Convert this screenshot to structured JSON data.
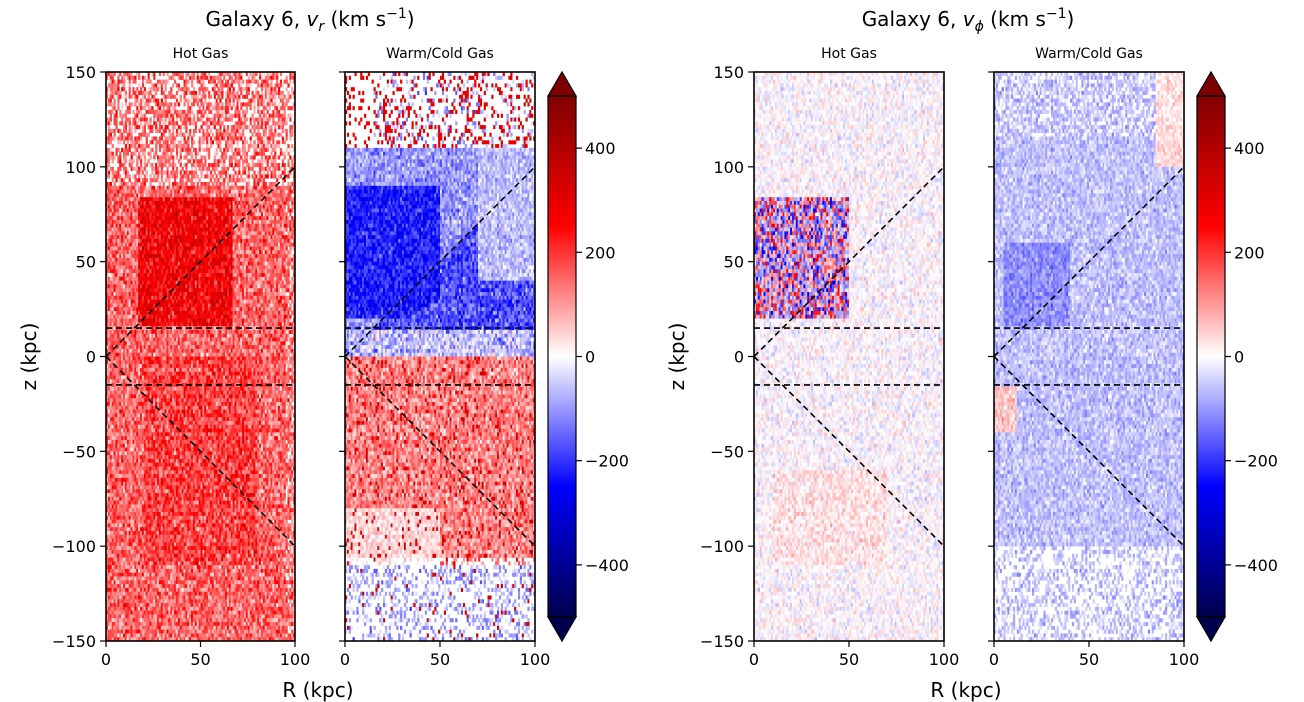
{
  "figure": {
    "left_title": {
      "prefix": "Galaxy 6, ",
      "var": "v",
      "sub": "r",
      "units": " (km s",
      "exp": "−1",
      "close": ")"
    },
    "right_title": {
      "prefix": "Galaxy 6, ",
      "var": "v",
      "sub": "ϕ",
      "units": " (km s",
      "exp": "−1",
      "close": ")"
    }
  },
  "colors": {
    "cmap_low": "#00004c",
    "cmap_mid": "#ffffff",
    "cmap_high": "#7f0000",
    "blue": "#0000ff",
    "red": "#ff0000",
    "guide": "#000000"
  },
  "chart_data": [
    {
      "type": "heatmap",
      "title": "Hot Gas",
      "group": "v_r",
      "xlabel": "R (kpc)",
      "ylabel": "z (kpc)",
      "xlim": [
        0,
        100
      ],
      "ylim": [
        -150,
        150
      ],
      "xticks": [
        "0",
        "50",
        "100"
      ],
      "yticks": [
        "150",
        "100",
        "50",
        "0",
        "−50",
        "−100",
        "−150"
      ],
      "guides": {
        "horizontal_z": [
          15,
          -15
        ],
        "diagonal_slope_z_per_R": 1
      },
      "description_of_values": "predominantly positive v_r ~100–300 km/s throughout; strongest (~400) near R 30–60, z 20–80"
    },
    {
      "type": "heatmap",
      "title": "Warm/Cold Gas",
      "group": "v_r",
      "xlim": [
        0,
        100
      ],
      "ylim": [
        -150,
        150
      ],
      "xticks": [
        "0",
        "50",
        "100"
      ],
      "guides": {
        "horizontal_z": [
          15,
          -15
        ],
        "diagonal_slope_z_per_R": 1
      },
      "description_of_values": "negative v_r (~−150 to −300) above the plane within the cone; positive (~100–300) below the plane"
    },
    {
      "type": "heatmap",
      "title": "Hot Gas",
      "group": "v_phi",
      "xlabel": "R (kpc)",
      "ylabel": "z (kpc)",
      "xlim": [
        0,
        100
      ],
      "ylim": [
        -150,
        150
      ],
      "xticks": [
        "0",
        "50",
        "100"
      ],
      "yticks": [
        "150",
        "100",
        "50",
        "0",
        "−50",
        "−100",
        "−150"
      ],
      "guides": {
        "horizontal_z": [
          15,
          -15
        ],
        "diagonal_slope_z_per_R": 1
      },
      "description_of_values": "near zero with noise (±100); mixed red/blue pixels near R 0–50, z 20–85"
    },
    {
      "type": "heatmap",
      "title": "Warm/Cold Gas",
      "group": "v_phi",
      "xlim": [
        0,
        100
      ],
      "ylim": [
        -150,
        150
      ],
      "xticks": [
        "0",
        "50",
        "100"
      ],
      "guides": {
        "horizontal_z": [
          15,
          -15
        ],
        "diagonal_slope_z_per_R": 1
      },
      "description_of_values": "mildly negative v_phi (~−50 to −150) over most of the region"
    }
  ],
  "colorbars": [
    {
      "label": "",
      "range": [
        -500,
        500
      ],
      "ticks": [
        "400",
        "200",
        "0",
        "−200",
        "−400"
      ],
      "tick_values": [
        400,
        200,
        0,
        -200,
        -400
      ],
      "extend": "both"
    },
    {
      "label": "",
      "range": [
        -500,
        500
      ],
      "ticks": [
        "400",
        "200",
        "0",
        "−200",
        "−400"
      ],
      "tick_values": [
        400,
        200,
        0,
        -200,
        -400
      ],
      "extend": "both"
    }
  ]
}
